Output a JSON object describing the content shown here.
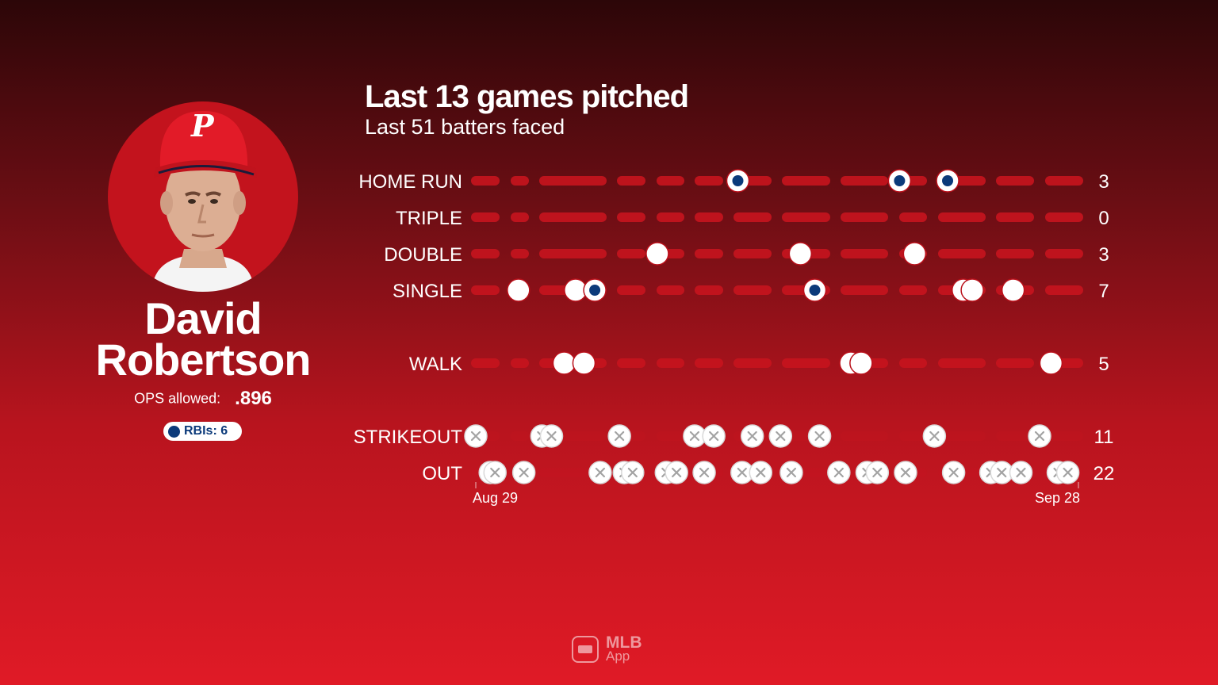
{
  "player": {
    "first_name": "David",
    "last_name": "Robertson",
    "ops_label": "OPS allowed:",
    "ops_value": ".896",
    "rbi_label": "RBIs: 6",
    "team_cap_letter": "P",
    "photo_icon": "player-headshot-icon"
  },
  "title": "Last 13 games pitched",
  "subtitle": "Last 51 batters faced",
  "colors": {
    "rbi_marker": "#0b3a7a",
    "track": "#c7141e",
    "marker": "#ffffff"
  },
  "logo": {
    "line1": "MLB",
    "line2": "App"
  },
  "chart_data": {
    "type": "scatter",
    "title": "Last 13 games pitched",
    "subtitle": "Last 51 batters faced",
    "x_start_label": "Aug 29",
    "x_end_label": "Sep 28",
    "games": 13,
    "legend": "RBIs: 6",
    "rows": [
      {
        "label": "HOME RUN",
        "total": "3",
        "marker": "dot",
        "events": [
          {
            "x": 0.436,
            "rbi": true
          },
          {
            "x": 0.705,
            "rbi": true
          },
          {
            "x": 0.785,
            "rbi": true
          }
        ]
      },
      {
        "label": "TRIPLE",
        "total": "0",
        "marker": "dot",
        "events": []
      },
      {
        "label": "DOUBLE",
        "total": "3",
        "marker": "dot",
        "events": [
          {
            "x": 0.302,
            "rbi": false
          },
          {
            "x": 0.54,
            "rbi": false
          },
          {
            "x": 0.73,
            "rbi": false
          }
        ]
      },
      {
        "label": "SINGLE",
        "total": "7",
        "marker": "dot",
        "events": [
          {
            "x": 0.071,
            "rbi": false
          },
          {
            "x": 0.166,
            "rbi": false
          },
          {
            "x": 0.198,
            "rbi": true
          },
          {
            "x": 0.564,
            "rbi": true
          },
          {
            "x": 0.811,
            "rbi": false
          },
          {
            "x": 0.826,
            "rbi": false
          },
          {
            "x": 0.894,
            "rbi": false
          }
        ]
      },
      {
        "label": "WALK",
        "total": "5",
        "marker": "dot",
        "events": [
          {
            "x": 0.147,
            "rbi": false
          },
          {
            "x": 0.18,
            "rbi": false
          },
          {
            "x": 0.624,
            "rbi": false
          },
          {
            "x": 0.641,
            "rbi": false
          },
          {
            "x": 0.957,
            "rbi": false
          }
        ]
      },
      {
        "label": "STRIKEOUT",
        "total": "11",
        "marker": "x",
        "events": [
          {
            "x": 0.0
          },
          {
            "x": 0.11
          },
          {
            "x": 0.126
          },
          {
            "x": 0.239
          },
          {
            "x": 0.364
          },
          {
            "x": 0.396
          },
          {
            "x": 0.46
          },
          {
            "x": 0.507
          },
          {
            "x": 0.572
          },
          {
            "x": 0.763
          },
          {
            "x": 0.938
          }
        ]
      },
      {
        "label": "OUT",
        "total": "22",
        "marker": "x",
        "events": [
          {
            "x": 0.024
          },
          {
            "x": 0.032
          },
          {
            "x": 0.08
          },
          {
            "x": 0.207
          },
          {
            "x": 0.247
          },
          {
            "x": 0.261
          },
          {
            "x": 0.317
          },
          {
            "x": 0.334
          },
          {
            "x": 0.38
          },
          {
            "x": 0.443
          },
          {
            "x": 0.474
          },
          {
            "x": 0.525
          },
          {
            "x": 0.604
          },
          {
            "x": 0.651
          },
          {
            "x": 0.668
          },
          {
            "x": 0.715
          },
          {
            "x": 0.795
          },
          {
            "x": 0.857
          },
          {
            "x": 0.875
          },
          {
            "x": 0.907
          },
          {
            "x": 0.969
          },
          {
            "x": 0.985
          }
        ]
      }
    ]
  }
}
